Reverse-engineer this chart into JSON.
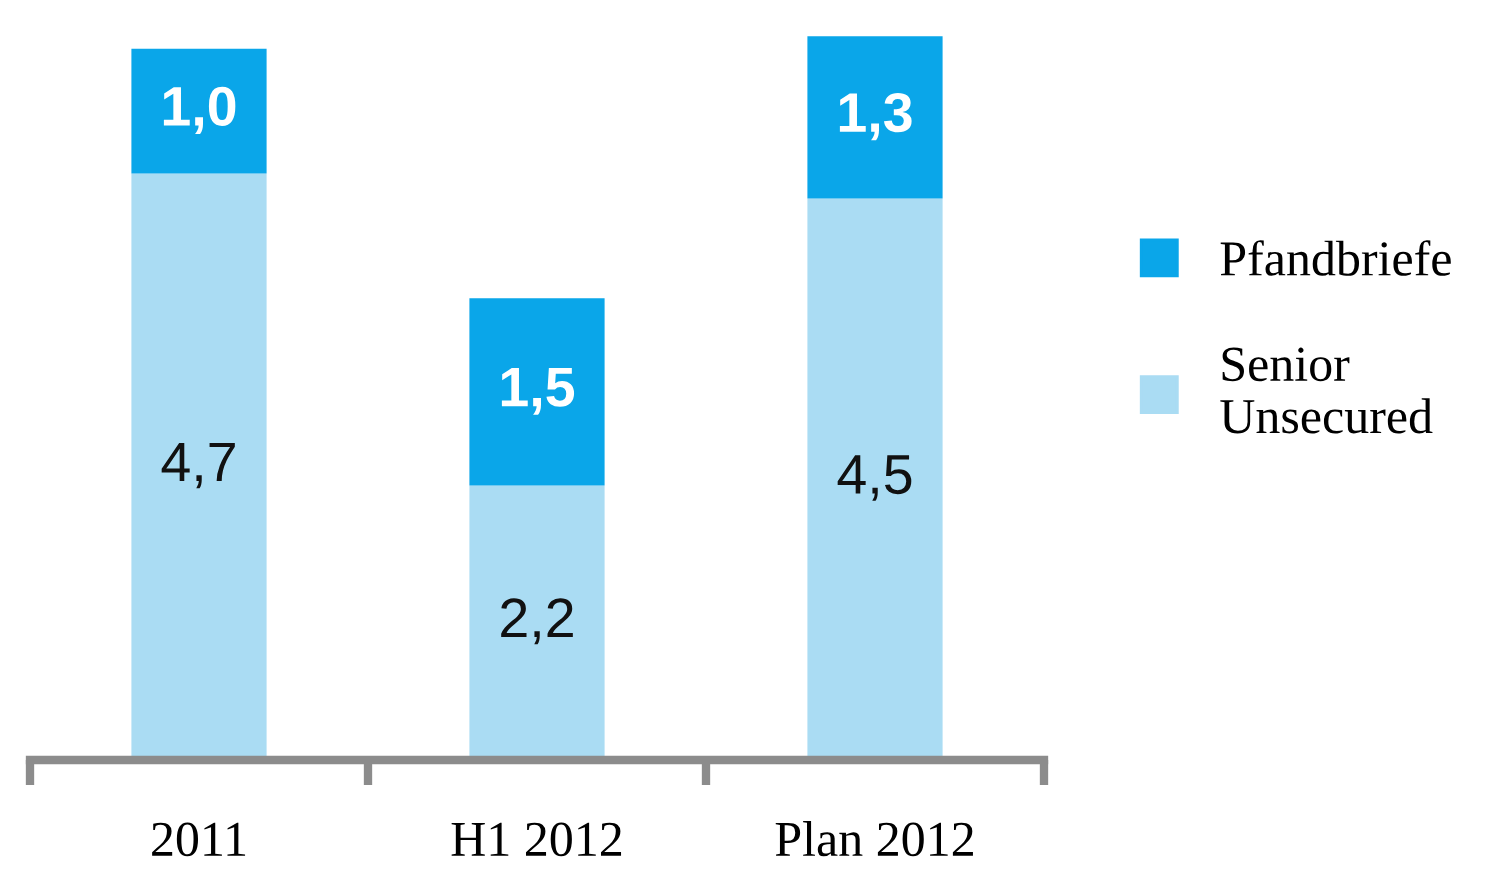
{
  "chart_data": {
    "type": "bar",
    "stacked": true,
    "categories": [
      "2011",
      "H1 2012",
      "Plan 2012"
    ],
    "series": [
      {
        "name": "Senior\nUnsecured",
        "color": "#aadcf3",
        "values": [
          4.7,
          2.2,
          4.5
        ],
        "value_labels": [
          "4,7",
          "2,2",
          "4,5"
        ]
      },
      {
        "name": "Pfandbriefe",
        "color": "#0aa6e9",
        "values": [
          1.0,
          1.5,
          1.3
        ],
        "value_labels": [
          "1,0",
          "1,5",
          "1,3"
        ]
      }
    ],
    "tick_labels": "x",
    "legend": "right",
    "grid": false
  }
}
